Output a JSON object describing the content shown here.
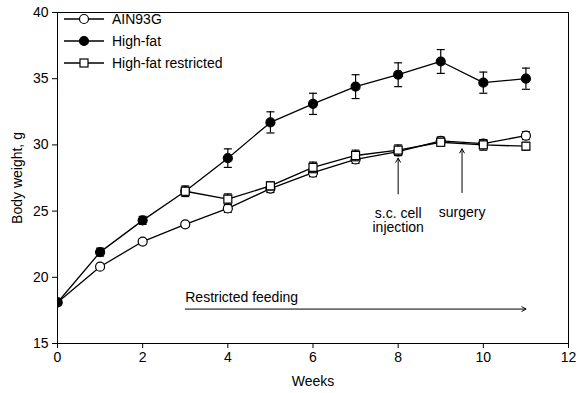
{
  "chart_data": {
    "type": "line",
    "x_label": "Weeks",
    "y_label": "Body weight, g",
    "xlim": [
      0,
      12
    ],
    "xticks": [
      0,
      2,
      4,
      6,
      8,
      10,
      12
    ],
    "ylim": [
      15,
      40
    ],
    "yticks": [
      15,
      20,
      25,
      30,
      35,
      40
    ],
    "legend": "top-left",
    "series": [
      {
        "name": "AIN93G",
        "color": "#000000",
        "marker": "circle-open",
        "x": [
          0,
          1,
          2,
          3,
          4,
          5,
          6,
          7,
          8,
          9,
          10,
          11
        ],
        "values": [
          18.1,
          20.8,
          22.7,
          24.0,
          25.2,
          26.7,
          27.9,
          28.9,
          29.5,
          30.3,
          30.1,
          30.7
        ],
        "errors": [
          0.1,
          0.2,
          0.2,
          0.2,
          0.3,
          0.3,
          0.3,
          0.3,
          0.3,
          0.3,
          0.3,
          0.3
        ]
      },
      {
        "name": "High-fat",
        "color": "#000000",
        "marker": "circle",
        "x": [
          0,
          1,
          2,
          3,
          4,
          5,
          6,
          7,
          8,
          9,
          10,
          11
        ],
        "values": [
          18.1,
          21.9,
          24.3,
          26.5,
          29.0,
          31.7,
          33.1,
          34.4,
          35.3,
          36.3,
          34.7,
          35.0
        ],
        "errors": [
          0.1,
          0.3,
          0.3,
          0.4,
          0.7,
          0.8,
          0.8,
          0.9,
          0.9,
          0.9,
          0.8,
          0.8
        ]
      },
      {
        "name": "High-fat restricted",
        "color": "#000000",
        "marker": "square-open",
        "x": [
          3,
          4,
          5,
          6,
          7,
          8,
          9,
          10,
          11
        ],
        "values": [
          26.5,
          25.9,
          26.9,
          28.3,
          29.2,
          29.6,
          30.2,
          30.0,
          29.9
        ],
        "errors": [
          0.3,
          0.4,
          0.3,
          0.4,
          0.4,
          0.4,
          0.3,
          0.4,
          0.3
        ]
      }
    ],
    "annotations": [
      {
        "text": "s.c. cell injection",
        "x1": 8,
        "y1": 26.3,
        "x2": 8,
        "y2": 29.0
      },
      {
        "text": "surgery",
        "x1": 9.5,
        "y1": 26.4,
        "x2": 9.5,
        "y2": 29.7
      },
      {
        "text": "Restricted feeding",
        "x1": 3,
        "y1": 17.6,
        "x2": 11,
        "y2": 17.6
      }
    ]
  }
}
